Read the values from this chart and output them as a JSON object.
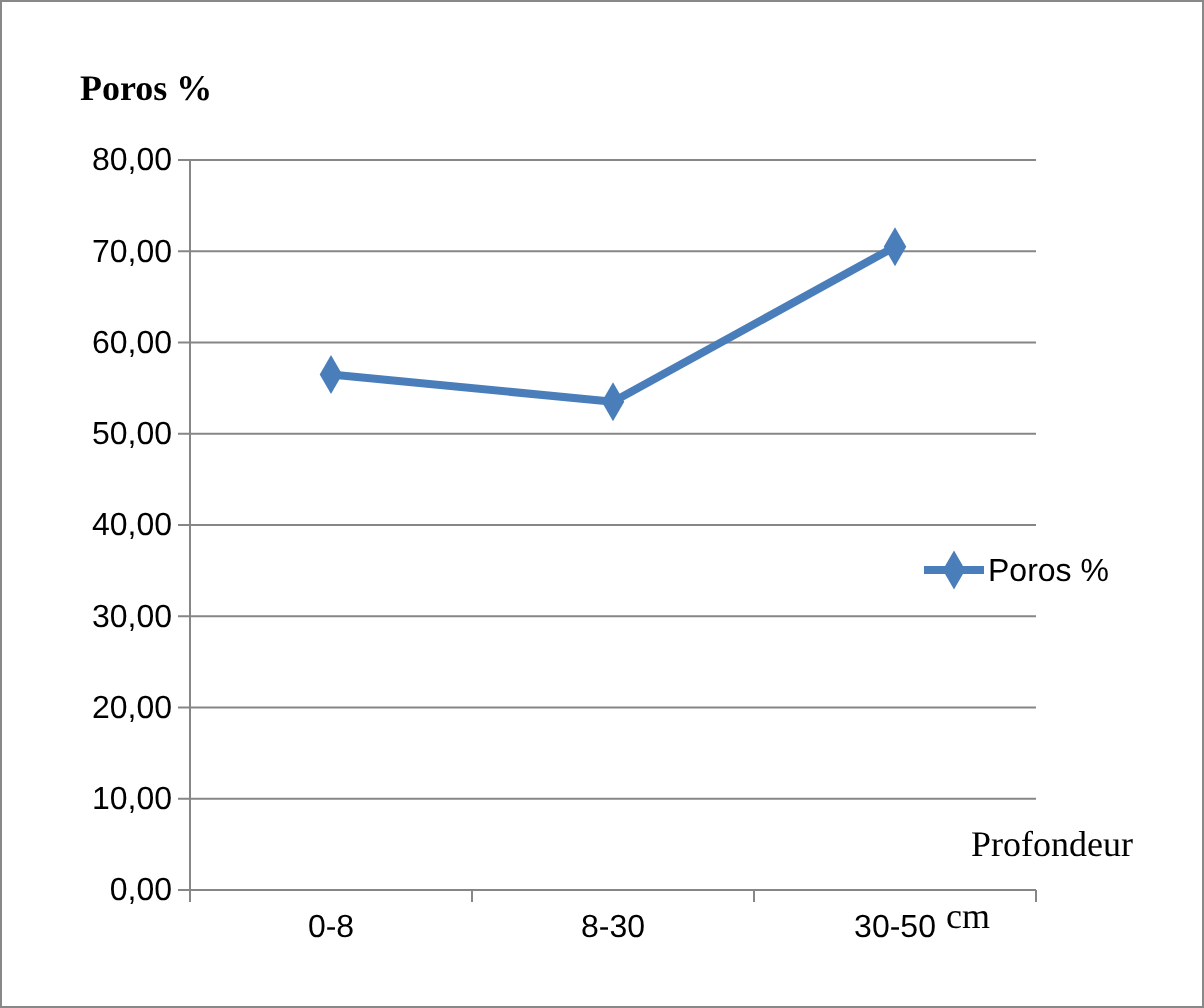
{
  "chart_data": {
    "type": "line",
    "ylabel": "Poros %",
    "xlabel": "Profondeur cm",
    "categories": [
      "0-8",
      "8-30",
      "30-50"
    ],
    "series": [
      {
        "name": "Poros %",
        "color": "#4a7ebb",
        "values": [
          56.5,
          53.5,
          70.5
        ]
      }
    ],
    "ylim": [
      0,
      80
    ],
    "yticks": [
      {
        "value": 0,
        "label": "0,00"
      },
      {
        "value": 10,
        "label": "10,00"
      },
      {
        "value": 20,
        "label": "20,00"
      },
      {
        "value": 30,
        "label": "30,00"
      },
      {
        "value": 40,
        "label": "40,00"
      },
      {
        "value": 50,
        "label": "50,00"
      },
      {
        "value": 60,
        "label": "60,00"
      },
      {
        "value": 70,
        "label": "70,00"
      },
      {
        "value": 80,
        "label": "80,00"
      }
    ],
    "grid": "y",
    "legend": "right",
    "marker": "diamond",
    "line_style": "solid"
  }
}
